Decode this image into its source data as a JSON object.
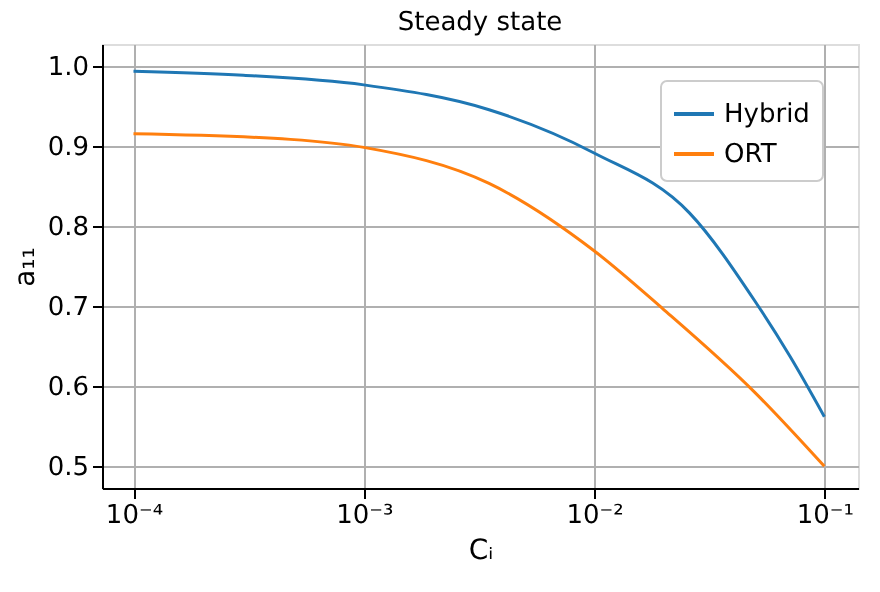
{
  "chart_data": {
    "type": "line",
    "title": "Steady state",
    "xlabel": "Cᵢ",
    "ylabel": "a₁₁",
    "log": "x",
    "grid": true,
    "legend": "top right",
    "marker": "none",
    "line_style": "solid",
    "xlim": [
      7.3e-05,
      0.14
    ],
    "ylim": [
      0.473,
      1.027
    ],
    "xticks": [
      {
        "value": 0.0001,
        "label": "10⁻⁴"
      },
      {
        "value": 0.001,
        "label": "10⁻³"
      },
      {
        "value": 0.01,
        "label": "10⁻²"
      },
      {
        "value": 0.1,
        "label": "10⁻¹"
      }
    ],
    "yticks": [
      0.5,
      0.6,
      0.7,
      0.8,
      0.9,
      {
        "value": 1,
        "label": "1.0"
      }
    ],
    "series": [
      {
        "name": "Hybrid",
        "color": "#1f77b4",
        "x": [
          0.0001,
          0.0003,
          0.001,
          0.0035,
          0.01,
          0.026,
          0.05,
          0.071,
          0.1
        ],
        "values": [
          0.993,
          0.988,
          0.976,
          0.945,
          0.891,
          0.816,
          0.706,
          0.637,
          0.562
        ]
      },
      {
        "name": "ORT",
        "color": "#ff7f0e",
        "x": [
          0.0001,
          0.00048,
          0.001,
          0.0035,
          0.01,
          0.02,
          0.05,
          0.1
        ],
        "values": [
          0.915,
          0.908,
          0.898,
          0.853,
          0.769,
          0.696,
          0.592,
          0.5
        ]
      }
    ]
  }
}
